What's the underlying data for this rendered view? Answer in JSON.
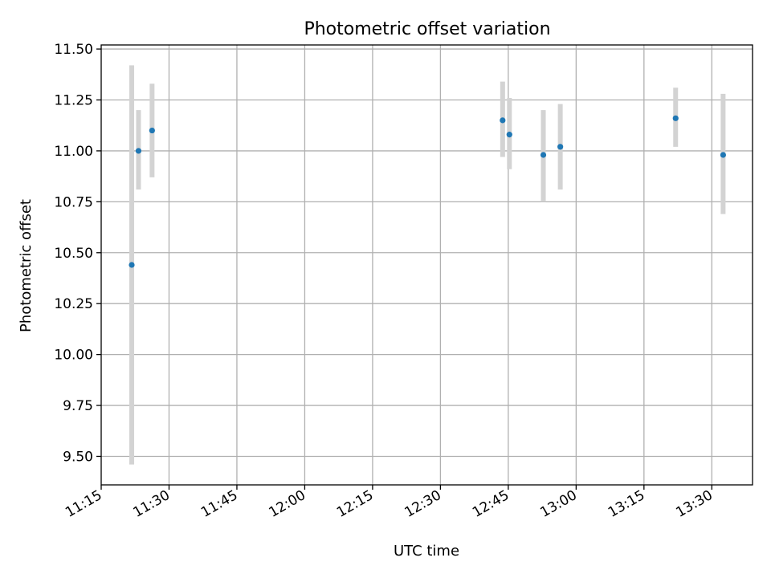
{
  "chart_data": {
    "type": "scatter",
    "title": "Photometric offset variation",
    "xlabel": "UTC time",
    "ylabel": "Photometric offset",
    "xlim": [
      "11:15",
      "13:39"
    ],
    "ylim": [
      9.36,
      11.52
    ],
    "x_ticks": [
      "11:15",
      "11:30",
      "11:45",
      "12:00",
      "12:15",
      "12:30",
      "12:45",
      "13:00",
      "13:15",
      "13:30"
    ],
    "y_ticks": [
      "9.50",
      "9.75",
      "10.00",
      "10.25",
      "10.50",
      "10.75",
      "11.00",
      "11.25",
      "11.50"
    ],
    "grid": true,
    "colors": {
      "point": "#1f77b4",
      "errorbar": "#d3d3d3"
    },
    "series": [
      {
        "points": [
          {
            "time": "11:21:45",
            "y": 10.44,
            "err_low": 9.46,
            "err_high": 11.42
          },
          {
            "time": "11:23:15",
            "y": 11.0,
            "err_low": 10.81,
            "err_high": 11.2
          },
          {
            "time": "11:26:15",
            "y": 11.1,
            "err_low": 10.87,
            "err_high": 11.33
          },
          {
            "time": "12:43:45",
            "y": 11.15,
            "err_low": 10.97,
            "err_high": 11.34
          },
          {
            "time": "12:45:15",
            "y": 11.08,
            "err_low": 10.91,
            "err_high": 11.26
          },
          {
            "time": "12:52:45",
            "y": 10.98,
            "err_low": 10.75,
            "err_high": 11.2
          },
          {
            "time": "12:56:30",
            "y": 11.02,
            "err_low": 10.81,
            "err_high": 11.23
          },
          {
            "time": "13:22:00",
            "y": 11.16,
            "err_low": 11.02,
            "err_high": 11.31
          },
          {
            "time": "13:32:30",
            "y": 10.98,
            "err_low": 10.69,
            "err_high": 11.28
          }
        ]
      }
    ]
  }
}
